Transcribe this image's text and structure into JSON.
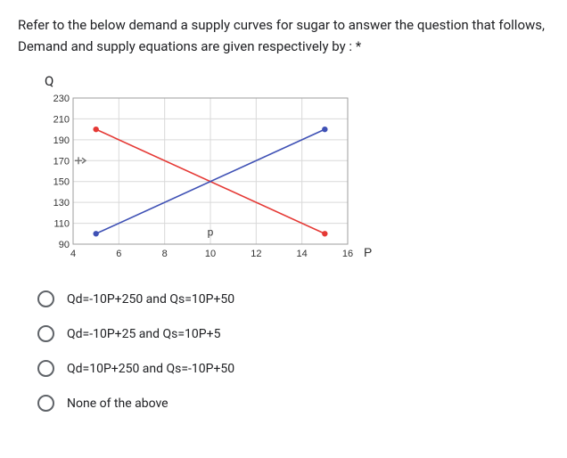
{
  "question": {
    "text": "Refer to the below demand a supply curves for sugar to answer the question that follows, Demand and supply equations are given respectively by : *"
  },
  "chart": {
    "y_axis_title": "Q",
    "x_axis_title": "P",
    "x_axis_internal_label": "p",
    "x_ticks": [
      4,
      6,
      8,
      10,
      12,
      14,
      16
    ],
    "y_ticks": [
      90,
      110,
      130,
      150,
      170,
      190,
      210,
      230
    ],
    "xlim": [
      4,
      16
    ],
    "ylim": [
      90,
      230
    ],
    "grid_color": "#d9d9d9",
    "border_color": "#9e9e9e",
    "tick_fontsize": 11,
    "tick_color": "#333333",
    "background_color": "#ffffff",
    "demand_line": {
      "color": "#e53935",
      "width": 1.6,
      "pts": [
        [
          5,
          200
        ],
        [
          15,
          100
        ]
      ],
      "marker_pts": [
        [
          5,
          200
        ],
        [
          15,
          100
        ]
      ],
      "marker_size": 3.2
    },
    "supply_line": {
      "color": "#3f51b5",
      "width": 1.6,
      "pts": [
        [
          5,
          100
        ],
        [
          15,
          200
        ]
      ],
      "marker_pts": [
        [
          5,
          100
        ],
        [
          15,
          200
        ]
      ],
      "marker_size": 3.2
    },
    "y_cursor": {
      "y": 170,
      "color": "#777777"
    }
  },
  "options": [
    {
      "label": "Qd=-10P+250 and Qs=10P+50"
    },
    {
      "label": "Qd=-10P+25 and Qs=10P+5"
    },
    {
      "label": "Qd=10P+250 and Qs=-10P+50"
    },
    {
      "label": "None of the above"
    }
  ]
}
